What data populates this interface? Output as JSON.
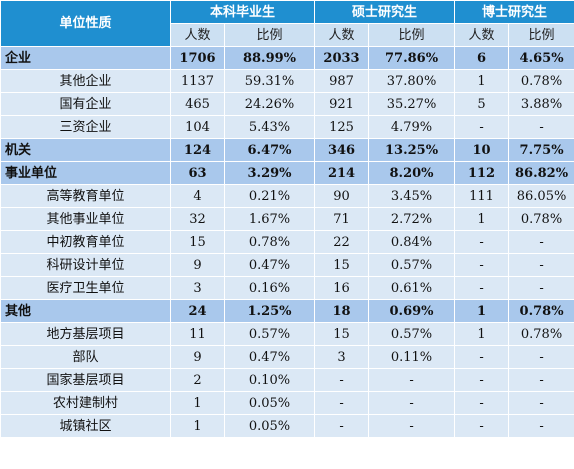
{
  "header": {
    "corner": "单位性质",
    "groups": [
      "本科毕业生",
      "硕士研究生",
      "博士研究生"
    ],
    "sub": [
      "人数",
      "比例",
      "人数",
      "比例",
      "人数",
      "比例"
    ]
  },
  "rows": [
    {
      "type": "cat",
      "name": "企业",
      "v": [
        "1706",
        "88.99%",
        "2033",
        "77.86%",
        "6",
        "4.65%"
      ]
    },
    {
      "type": "sub",
      "name": "其他企业",
      "v": [
        "1137",
        "59.31%",
        "987",
        "37.80%",
        "1",
        "0.78%"
      ]
    },
    {
      "type": "sub",
      "name": "国有企业",
      "v": [
        "465",
        "24.26%",
        "921",
        "35.27%",
        "5",
        "3.88%"
      ]
    },
    {
      "type": "sub",
      "name": "三资企业",
      "v": [
        "104",
        "5.43%",
        "125",
        "4.79%",
        "-",
        "-"
      ]
    },
    {
      "type": "cat",
      "name": "机关",
      "v": [
        "124",
        "6.47%",
        "346",
        "13.25%",
        "10",
        "7.75%"
      ]
    },
    {
      "type": "cat",
      "name": "事业单位",
      "v": [
        "63",
        "3.29%",
        "214",
        "8.20%",
        "112",
        "86.82%"
      ]
    },
    {
      "type": "sub",
      "name": "高等教育单位",
      "v": [
        "4",
        "0.21%",
        "90",
        "3.45%",
        "111",
        "86.05%"
      ]
    },
    {
      "type": "sub",
      "name": "其他事业单位",
      "v": [
        "32",
        "1.67%",
        "71",
        "2.72%",
        "1",
        "0.78%"
      ]
    },
    {
      "type": "sub",
      "name": "中初教育单位",
      "v": [
        "15",
        "0.78%",
        "22",
        "0.84%",
        "-",
        "-"
      ]
    },
    {
      "type": "sub",
      "name": "科研设计单位",
      "v": [
        "9",
        "0.47%",
        "15",
        "0.57%",
        "-",
        "-"
      ]
    },
    {
      "type": "sub",
      "name": "医疗卫生单位",
      "v": [
        "3",
        "0.16%",
        "16",
        "0.61%",
        "-",
        "-"
      ]
    },
    {
      "type": "cat",
      "name": "其他",
      "v": [
        "24",
        "1.25%",
        "18",
        "0.69%",
        "1",
        "0.78%"
      ]
    },
    {
      "type": "sub",
      "name": "地方基层项目",
      "v": [
        "11",
        "0.57%",
        "15",
        "0.57%",
        "1",
        "0.78%"
      ]
    },
    {
      "type": "sub",
      "name": "部队",
      "v": [
        "9",
        "0.47%",
        "3",
        "0.11%",
        "-",
        "-"
      ]
    },
    {
      "type": "sub",
      "name": "国家基层项目",
      "v": [
        "2",
        "0.10%",
        "-",
        "-",
        "-",
        "-"
      ]
    },
    {
      "type": "sub",
      "name": "农村建制村",
      "v": [
        "1",
        "0.05%",
        "-",
        "-",
        "-",
        "-"
      ]
    },
    {
      "type": "sub",
      "name": "城镇社区",
      "v": [
        "1",
        "0.05%",
        "-",
        "-",
        "-",
        "-"
      ]
    }
  ],
  "colors": {
    "header_bg": "#1f8fd0",
    "subheader_bg": "#cce0f2",
    "category_bg": "#a9c8ec",
    "subrow_bg": "#dbe8f5",
    "label_col_bg": "#d8e6f4"
  }
}
